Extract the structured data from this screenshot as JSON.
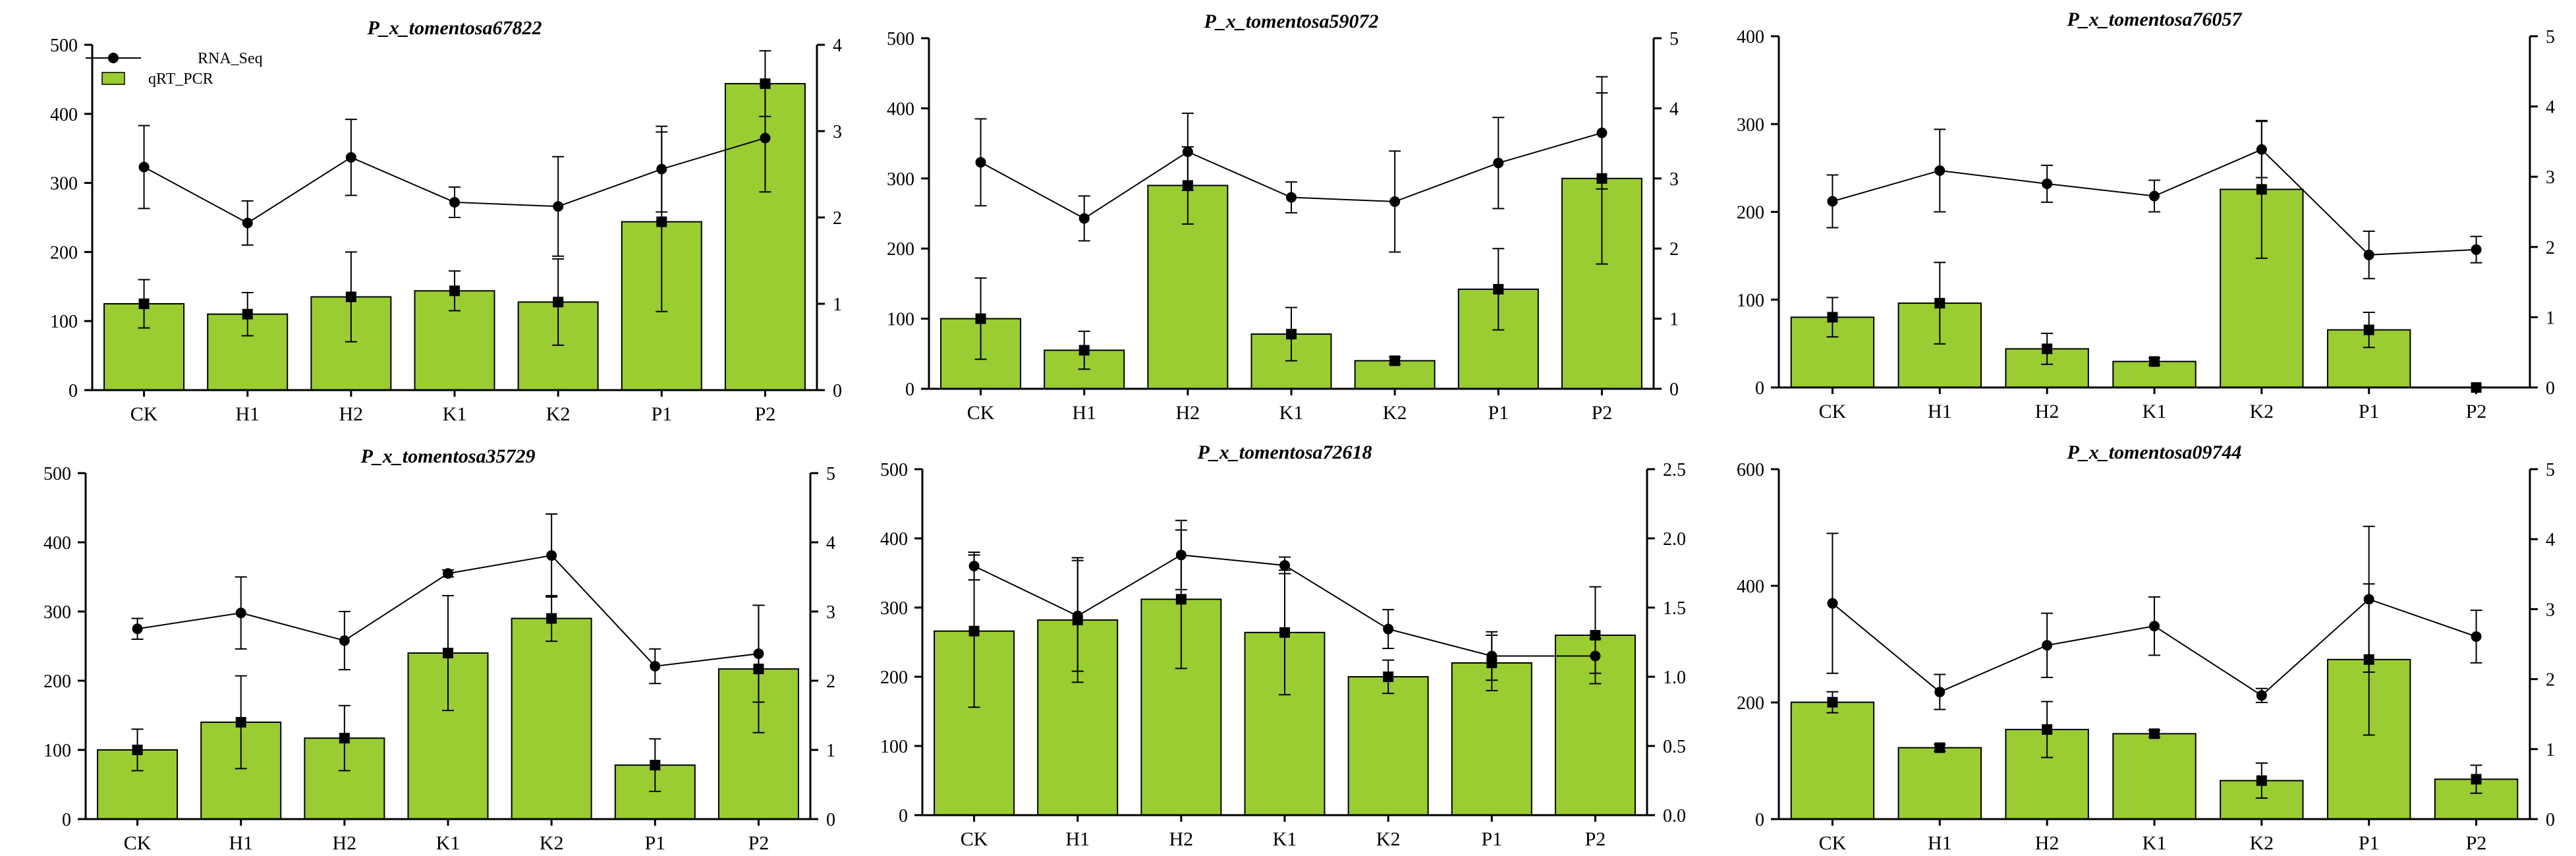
{
  "styles": {
    "bar_color": "#9acd32",
    "bar_stroke": "#000000",
    "line_color": "#000000",
    "background": "#ffffff"
  },
  "legend": {
    "line_label": "RNA_Seq",
    "bar_label": "qRT_PCR",
    "placement": "top-left of first panel"
  },
  "chart_data": [
    {
      "type": "bar+line",
      "title": "P_x_tomentosa67822",
      "categories": [
        "CK",
        "H1",
        "H2",
        "K1",
        "K2",
        "P1",
        "P2"
      ],
      "left_axis": {
        "min": 0,
        "max": 500,
        "ticks": [
          "0",
          "100",
          "200",
          "300",
          "400",
          "500"
        ]
      },
      "right_axis": {
        "min": 0,
        "max": 4,
        "ticks": [
          "0",
          "1",
          "2",
          "3",
          "4"
        ]
      },
      "bars": {
        "name": "qRT_PCR",
        "axis": "right",
        "values": [
          1.0,
          0.88,
          1.08,
          1.15,
          1.02,
          1.95,
          3.55
        ],
        "errors": [
          0.28,
          0.25,
          0.52,
          0.23,
          0.5,
          1.04,
          0.38
        ]
      },
      "line": {
        "name": "RNA_Seq",
        "axis": "left",
        "values": [
          323,
          242,
          337,
          272,
          266,
          320,
          365
        ],
        "errors": [
          60,
          32,
          55,
          22,
          72,
          62,
          78
        ]
      }
    },
    {
      "type": "bar+line",
      "title": "P_x_tomentosa59072",
      "categories": [
        "CK",
        "H1",
        "H2",
        "K1",
        "K2",
        "P1",
        "P2"
      ],
      "left_axis": {
        "min": 0,
        "max": 500,
        "ticks": [
          "0",
          "100",
          "200",
          "300",
          "400",
          "500"
        ]
      },
      "right_axis": {
        "min": 0,
        "max": 5,
        "ticks": [
          "0",
          "1",
          "2",
          "3",
          "4",
          "5"
        ]
      },
      "bars": {
        "name": "qRT_PCR",
        "axis": "right",
        "values": [
          1.0,
          0.55,
          2.9,
          0.78,
          0.4,
          1.42,
          3.0
        ],
        "errors": [
          0.58,
          0.27,
          0.55,
          0.38,
          0.05,
          0.58,
          1.22
        ]
      },
      "line": {
        "name": "RNA_Seq",
        "axis": "left",
        "values": [
          323,
          243,
          338,
          273,
          267,
          322,
          365
        ],
        "errors": [
          62,
          32,
          55,
          22,
          72,
          65,
          80
        ]
      }
    },
    {
      "type": "bar+line",
      "title": "P_x_tomentosa76057",
      "categories": [
        "CK",
        "H1",
        "H2",
        "K1",
        "K2",
        "P1",
        "P2"
      ],
      "left_axis": {
        "min": 0,
        "max": 400,
        "ticks": [
          "0",
          "100",
          "200",
          "300",
          "400"
        ]
      },
      "right_axis": {
        "min": 0,
        "max": 5,
        "ticks": [
          "0",
          "1",
          "2",
          "3",
          "4",
          "5"
        ]
      },
      "bars": {
        "name": "qRT_PCR",
        "axis": "right",
        "values": [
          1.0,
          1.2,
          0.55,
          0.37,
          2.82,
          0.82,
          0.0
        ],
        "errors": [
          0.28,
          0.58,
          0.22,
          0.05,
          0.98,
          0.25,
          0.0
        ]
      },
      "line": {
        "name": "RNA_Seq",
        "axis": "left",
        "values": [
          212,
          247,
          232,
          218,
          271,
          151,
          157
        ],
        "errors": [
          30,
          47,
          21,
          18,
          32,
          27,
          15
        ]
      }
    },
    {
      "type": "bar+line",
      "title": "P_x_tomentosa35729",
      "categories": [
        "CK",
        "H1",
        "H2",
        "K1",
        "K2",
        "P1",
        "P2"
      ],
      "left_axis": {
        "min": 0,
        "max": 500,
        "ticks": [
          "0",
          "100",
          "200",
          "300",
          "400",
          "500"
        ]
      },
      "right_axis": {
        "min": 0,
        "max": 5,
        "ticks": [
          "0",
          "1",
          "2",
          "3",
          "4",
          "5"
        ]
      },
      "bars": {
        "name": "qRT_PCR",
        "axis": "right",
        "values": [
          1.0,
          1.4,
          1.17,
          2.4,
          2.9,
          0.78,
          2.17
        ],
        "errors": [
          0.3,
          0.67,
          0.47,
          0.83,
          0.33,
          0.38,
          0.92
        ]
      },
      "line": {
        "name": "RNA_Seq",
        "axis": "left",
        "values": [
          275,
          298,
          258,
          355,
          381,
          221,
          239
        ],
        "errors": [
          15,
          52,
          42,
          5,
          60,
          25,
          70
        ]
      }
    },
    {
      "type": "bar+line",
      "title": "P_x_tomentosa72618",
      "categories": [
        "CK",
        "H1",
        "H2",
        "K1",
        "K2",
        "P1",
        "P2"
      ],
      "left_axis": {
        "min": 0,
        "max": 500,
        "ticks": [
          "0",
          "100",
          "200",
          "300",
          "400",
          "500"
        ]
      },
      "right_axis": {
        "min": 0,
        "max": 2.5,
        "ticks": [
          "0.0",
          "0.5",
          "1.0",
          "1.5",
          "2.0",
          "2.5"
        ]
      },
      "bars": {
        "name": "qRT_PCR",
        "axis": "right",
        "values": [
          1.33,
          1.41,
          1.56,
          1.32,
          1.0,
          1.1,
          1.3
        ],
        "errors": [
          0.55,
          0.45,
          0.5,
          0.45,
          0.12,
          0.2,
          0.35
        ]
      },
      "line": {
        "name": "RNA_Seq",
        "axis": "left",
        "values": [
          360,
          288,
          376,
          361,
          269,
          230,
          230
        ],
        "errors": [
          20,
          80,
          50,
          12,
          28,
          35,
          25
        ]
      }
    },
    {
      "type": "bar+line",
      "title": "P_x_tomentosa09744",
      "categories": [
        "CK",
        "H1",
        "H2",
        "K1",
        "K2",
        "P1",
        "P2"
      ],
      "left_axis": {
        "min": 0,
        "max": 600,
        "ticks": [
          "0",
          "200",
          "400",
          "600"
        ]
      },
      "right_axis": {
        "min": 0,
        "max": 5,
        "ticks": [
          "0",
          "1",
          "2",
          "3",
          "4",
          "5"
        ]
      },
      "bars": {
        "name": "qRT_PCR",
        "axis": "right",
        "values": [
          1.67,
          1.02,
          1.28,
          1.22,
          0.55,
          2.28,
          0.57
        ],
        "errors": [
          0.15,
          0.05,
          0.4,
          0.05,
          0.25,
          1.08,
          0.2
        ]
      },
      "line": {
        "name": "RNA_Seq",
        "axis": "left",
        "values": [
          370,
          218,
          298,
          331,
          212,
          377,
          313
        ],
        "errors": [
          120,
          30,
          55,
          50,
          12,
          125,
          45
        ]
      }
    }
  ]
}
